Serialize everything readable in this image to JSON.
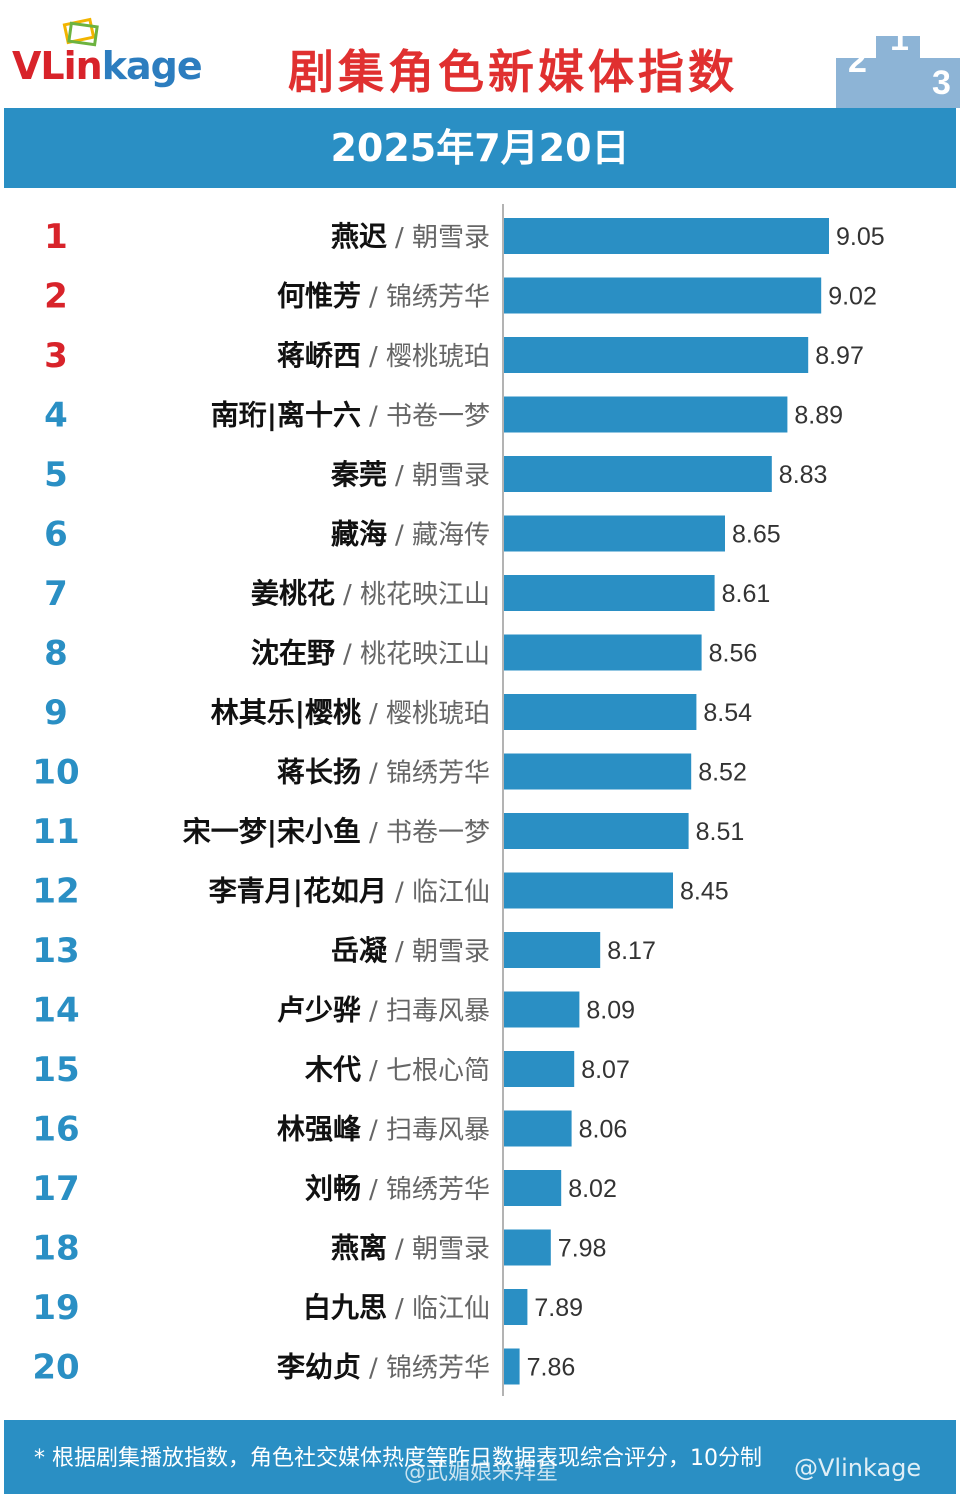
{
  "brand": {
    "part1": "VLin",
    "part2": "kage"
  },
  "title": "剧集角色新媒体指数",
  "date": "2025年7月20日",
  "colors": {
    "bar": "#2a8fc4",
    "top_rank": "#d8232a",
    "rank": "#2a8fc4",
    "banner": "#2a8fc4"
  },
  "chart_data": {
    "type": "bar",
    "orientation": "horizontal",
    "title": "剧集角色新媒体指数",
    "categories": [
      "燕迟",
      "何惟芳",
      "蒋峤西",
      "南珩|离十六",
      "秦莞",
      "藏海",
      "姜桃花",
      "沈在野",
      "林其乐|樱桃",
      "蒋长扬",
      "宋一梦|宋小鱼",
      "李青月|花如月",
      "岳凝",
      "卢少骅",
      "木代",
      "林强峰",
      "刘畅",
      "燕离",
      "白九思",
      "李幼贞"
    ],
    "rows": [
      {
        "rank": "1",
        "name": "燕迟",
        "drama": "朝雪录",
        "value": 9.05,
        "label": "9.05"
      },
      {
        "rank": "2",
        "name": "何惟芳",
        "drama": "锦绣芳华",
        "value": 9.02,
        "label": "9.02"
      },
      {
        "rank": "3",
        "name": "蒋峤西",
        "drama": "樱桃琥珀",
        "value": 8.97,
        "label": "8.97"
      },
      {
        "rank": "4",
        "name": "南珩|离十六",
        "drama": "书卷一梦",
        "value": 8.89,
        "label": "8.89"
      },
      {
        "rank": "5",
        "name": "秦莞",
        "drama": "朝雪录",
        "value": 8.83,
        "label": "8.83"
      },
      {
        "rank": "6",
        "name": "藏海",
        "drama": "藏海传",
        "value": 8.65,
        "label": "8.65"
      },
      {
        "rank": "7",
        "name": "姜桃花",
        "drama": "桃花映江山",
        "value": 8.61,
        "label": "8.61"
      },
      {
        "rank": "8",
        "name": "沈在野",
        "drama": "桃花映江山",
        "value": 8.56,
        "label": "8.56"
      },
      {
        "rank": "9",
        "name": "林其乐|樱桃",
        "drama": "樱桃琥珀",
        "value": 8.54,
        "label": "8.54"
      },
      {
        "rank": "10",
        "name": "蒋长扬",
        "drama": "锦绣芳华",
        "value": 8.52,
        "label": "8.52"
      },
      {
        "rank": "11",
        "name": "宋一梦|宋小鱼",
        "drama": "书卷一梦",
        "value": 8.51,
        "label": "8.51"
      },
      {
        "rank": "12",
        "name": "李青月|花如月",
        "drama": "临江仙",
        "value": 8.45,
        "label": "8.45"
      },
      {
        "rank": "13",
        "name": "岳凝",
        "drama": "朝雪录",
        "value": 8.17,
        "label": "8.17"
      },
      {
        "rank": "14",
        "name": "卢少骅",
        "drama": "扫毒风暴",
        "value": 8.09,
        "label": "8.09"
      },
      {
        "rank": "15",
        "name": "木代",
        "drama": "七根心简",
        "value": 8.07,
        "label": "8.07"
      },
      {
        "rank": "16",
        "name": "林强峰",
        "drama": "扫毒风暴",
        "value": 8.06,
        "label": "8.06"
      },
      {
        "rank": "17",
        "name": "刘畅",
        "drama": "锦绣芳华",
        "value": 8.02,
        "label": "8.02"
      },
      {
        "rank": "18",
        "name": "燕离",
        "drama": "朝雪录",
        "value": 7.98,
        "label": "7.98"
      },
      {
        "rank": "19",
        "name": "白九思",
        "drama": "临江仙",
        "value": 7.89,
        "label": "7.89"
      },
      {
        "rank": "20",
        "name": "李幼贞",
        "drama": "锦绣芳华",
        "value": 7.86,
        "label": "7.86"
      }
    ],
    "xlim": [
      7.8,
      9.05
    ],
    "grid": false,
    "legend": "none"
  },
  "footer": {
    "note": "* 根据剧集播放指数，角色社交媒体热度等昨日数据表现综合评分，10分制",
    "watermark_left": "@武媚娘来拜星",
    "watermark_right": "@Vlinkage"
  }
}
